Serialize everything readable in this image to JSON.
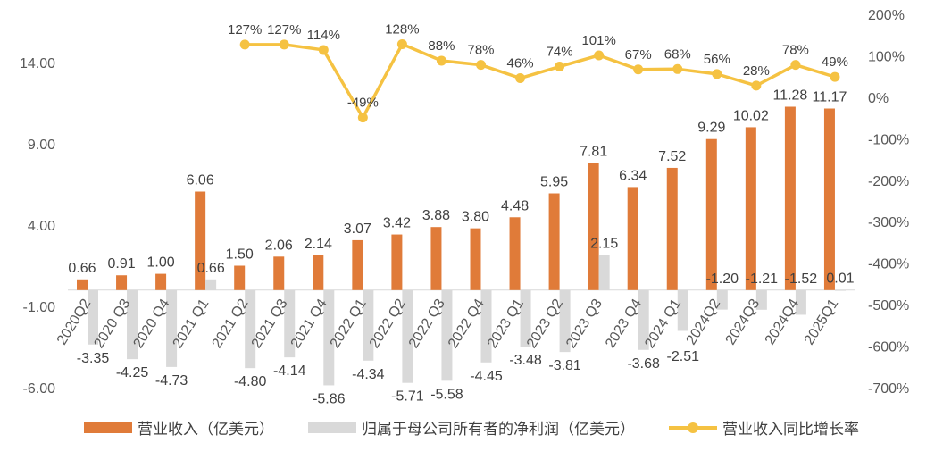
{
  "chart_data": {
    "type": "bar+line",
    "categories": [
      "2020Q2",
      "2020 Q3",
      "2020 Q4",
      "2021 Q1",
      "2021 Q2",
      "2021 Q3",
      "2021 Q4",
      "2022 Q1",
      "2022 Q2",
      "2022 Q3",
      "2022 Q4",
      "2023 Q1",
      "2023 Q2",
      "2023 Q3",
      "2023 Q4",
      "2024 Q1",
      "2024Q2",
      "2024Q3",
      "2024Q4",
      "2025Q1"
    ],
    "series": [
      {
        "name": "营业收入（亿美元）",
        "type": "bar",
        "axis": "left",
        "color": "#E07B39",
        "values": [
          0.66,
          0.91,
          1.0,
          6.06,
          1.5,
          2.06,
          2.14,
          3.07,
          3.42,
          3.88,
          3.8,
          4.48,
          5.95,
          7.81,
          6.34,
          7.52,
          9.29,
          10.02,
          11.28,
          11.17
        ]
      },
      {
        "name": "归属于母公司所有者的净利润（亿美元）",
        "type": "bar",
        "axis": "left",
        "color": "#D9D9D9",
        "values": [
          -3.35,
          -4.25,
          -4.73,
          0.66,
          -4.8,
          -4.14,
          -5.86,
          -4.34,
          -5.71,
          -5.58,
          -4.45,
          -3.48,
          -3.81,
          2.15,
          -3.68,
          -2.51,
          -1.2,
          -1.21,
          -1.52,
          0.01
        ]
      },
      {
        "name": "营业收入同比增长率",
        "type": "line",
        "axis": "right",
        "color": "#F5C242",
        "values": [
          null,
          null,
          null,
          null,
          127,
          127,
          114,
          -49,
          128,
          88,
          78,
          46,
          74,
          101,
          67,
          68,
          56,
          28,
          78,
          49
        ]
      }
    ],
    "left_axis": {
      "ylim": [
        -6,
        14
      ],
      "ticks": [
        "14.00",
        "9.00",
        "4.00",
        "-1.00",
        "-6.00"
      ],
      "tick_values": [
        14,
        9,
        4,
        -1,
        -6
      ]
    },
    "right_axis": {
      "ylim": [
        -700,
        200
      ],
      "ticks": [
        "200%",
        "100%",
        "0%",
        "-100%",
        "-200%",
        "-300%",
        "-400%",
        "-500%",
        "-600%",
        "-700%"
      ],
      "tick_values": [
        200,
        100,
        0,
        -100,
        -200,
        -300,
        -400,
        -500,
        -600,
        -700
      ]
    },
    "grid": false,
    "legend": "bottom"
  }
}
